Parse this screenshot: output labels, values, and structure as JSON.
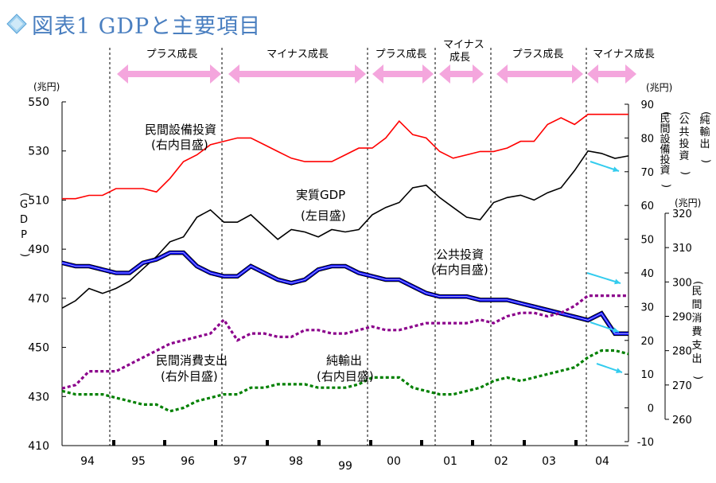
{
  "title": "図表1 GDPと主要項目",
  "colors": {
    "title": "#4a7fc0",
    "arrow": "#f4a6dd",
    "cyan": "#33ccee",
    "gdp": "#000000",
    "capex": "#ff0000",
    "public": "#0000ff",
    "consumption": "#8b008b",
    "net_exports": "#008000"
  },
  "units": {
    "left": "(兆円)",
    "right_inner": "(兆円)",
    "right_outer": "(兆円)"
  },
  "phase_labels": [
    "プラス成長",
    "マイナス成長",
    "プラス成長",
    "マイナス成長",
    "プラス成長",
    "マイナス成長"
  ],
  "axis_side_labels": {
    "gdp": "(GDP)",
    "capex": "(民間設備投資)",
    "public": "(公共投資)",
    "net_exports": "(純輸出)",
    "consumption": "(民間消費支出)"
  },
  "annotations": {
    "capex_l1": "民間設備投資",
    "capex_l2": "(右内目盛)",
    "gdp_l1": "実質GDP",
    "gdp_l2": "(左目盛)",
    "public_l1": "公共投資",
    "public_l2": "(右内目盛)",
    "cons_l1": "民間消費支出",
    "cons_l2": "(右外目盛)",
    "nx_l1": "純輸出",
    "nx_l2": "(右内目盛)"
  },
  "chart_data": {
    "type": "line",
    "title": "図表1 GDPと主要項目",
    "x_labels": [
      "94",
      "95",
      "96",
      "97",
      "98",
      "99",
      "00",
      "01",
      "02",
      "03",
      "04"
    ],
    "x": [
      "94Q1",
      "94Q2",
      "94Q3",
      "94Q4",
      "95Q1",
      "95Q2",
      "95Q3",
      "95Q4",
      "96Q1",
      "96Q2",
      "96Q3",
      "96Q4",
      "97Q1",
      "97Q2",
      "97Q3",
      "97Q4",
      "98Q1",
      "98Q2",
      "98Q3",
      "98Q4",
      "99Q1",
      "99Q2",
      "99Q3",
      "99Q4",
      "00Q1",
      "00Q2",
      "00Q3",
      "00Q4",
      "01Q1",
      "01Q2",
      "01Q3",
      "01Q4",
      "02Q1",
      "02Q2",
      "02Q3",
      "02Q4",
      "03Q1",
      "03Q2",
      "03Q3",
      "03Q4",
      "04Q1",
      "04Q2",
      "04Q3"
    ],
    "axes": {
      "left": {
        "ylim": [
          410,
          550
        ],
        "ticks": [
          410,
          430,
          450,
          470,
          490,
          510,
          530,
          550
        ]
      },
      "right_inner": {
        "ylim": [
          -10,
          90
        ],
        "ticks": [
          -10,
          0,
          10,
          20,
          30,
          40,
          50,
          60,
          70,
          80,
          90
        ]
      },
      "right_outer": {
        "ylim": [
          260,
          320
        ],
        "ticks": [
          260,
          270,
          280,
          290,
          300,
          310,
          320
        ]
      }
    },
    "series": [
      {
        "name": "実質GDP",
        "axis": "left",
        "values": [
          466,
          469,
          474,
          472,
          474,
          477,
          482,
          487,
          493,
          495,
          503,
          506,
          501,
          501,
          504,
          499,
          494,
          498,
          497,
          495,
          498,
          497,
          498,
          504,
          507,
          509,
          515,
          516,
          511,
          507,
          503,
          502,
          509,
          511,
          512,
          510,
          513,
          515,
          522,
          530,
          529,
          527,
          528
        ]
      },
      {
        "name": "民間設備投資",
        "axis": "right_inner",
        "values": [
          62,
          62,
          63,
          63,
          65,
          65,
          65,
          64,
          68,
          73,
          75,
          78,
          79,
          80,
          80,
          78,
          76,
          74,
          73,
          73,
          73,
          75,
          77,
          77,
          80,
          85,
          81,
          80,
          76,
          74,
          75,
          76,
          76,
          77,
          79,
          79,
          84,
          86,
          84,
          87,
          87,
          87,
          87
        ]
      },
      {
        "name": "公共投資",
        "axis": "right_inner",
        "values": [
          43,
          42,
          42,
          41,
          40,
          40,
          43,
          44,
          46,
          46,
          42,
          40,
          39,
          39,
          42,
          40,
          38,
          37,
          38,
          41,
          42,
          42,
          40,
          39,
          38,
          38,
          36,
          34,
          33,
          33,
          33,
          32,
          32,
          32,
          31,
          30,
          29,
          28,
          27,
          26,
          28,
          22,
          22
        ]
      },
      {
        "name": "民間消費支出",
        "axis": "right_outer",
        "values": [
          269,
          270,
          274,
          274,
          274,
          276,
          278,
          280,
          282,
          283,
          284,
          285,
          289,
          283,
          285,
          285,
          284,
          284,
          286,
          286,
          285,
          285,
          286,
          287,
          286,
          286,
          287,
          288,
          288,
          288,
          288,
          289,
          288,
          290,
          291,
          291,
          290,
          291,
          293,
          296,
          296,
          296,
          296
        ]
      },
      {
        "name": "純輸出",
        "axis": "right_inner",
        "values": [
          5,
          4,
          4,
          4,
          3,
          2,
          1,
          1,
          -1,
          0,
          2,
          3,
          4,
          4,
          6,
          6,
          7,
          7,
          7,
          6,
          6,
          6,
          7,
          9,
          9,
          9,
          6,
          5,
          4,
          4,
          5,
          6,
          8,
          9,
          8,
          9,
          10,
          11,
          12,
          15,
          17,
          17,
          16
        ]
      }
    ]
  }
}
